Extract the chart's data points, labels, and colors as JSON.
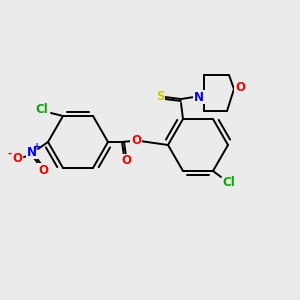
{
  "background_color": "#ebebeb",
  "bond_color": "#000000",
  "atom_colors": {
    "Cl": "#00aa00",
    "N": "#0000ff",
    "O": "#ff0000",
    "S": "#cccc00",
    "C": "#000000"
  },
  "figsize": [
    3.0,
    3.0
  ],
  "dpi": 100
}
